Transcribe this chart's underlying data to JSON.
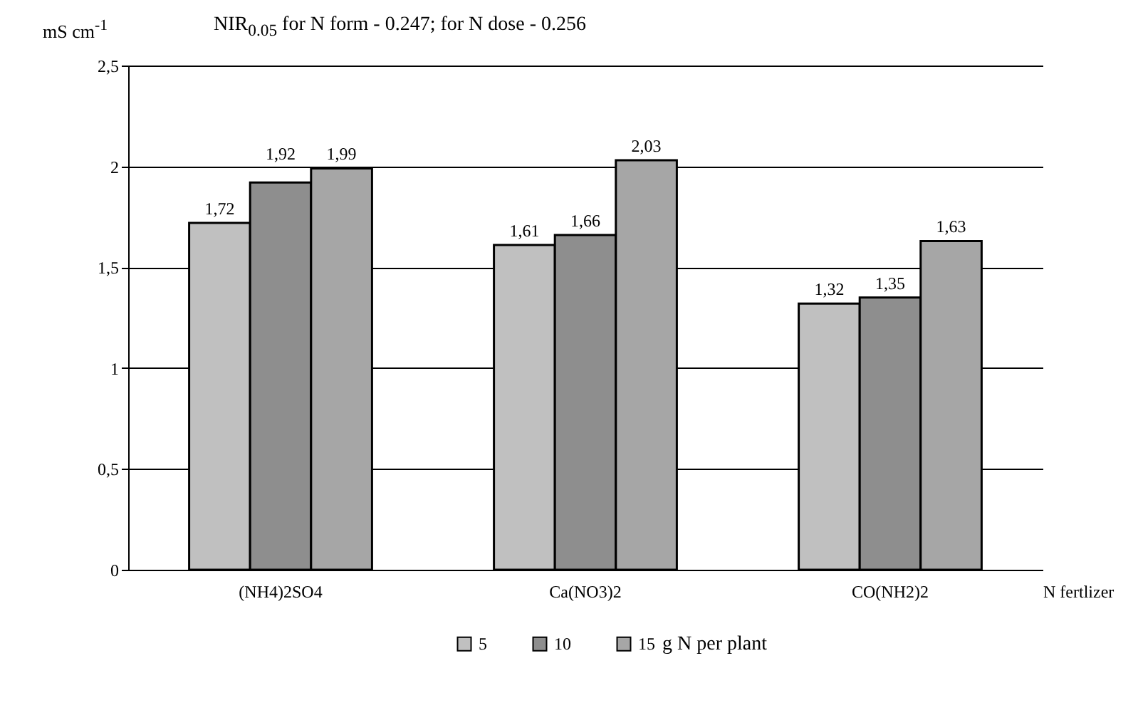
{
  "chart_data": {
    "type": "bar",
    "title": "NIR$_{0.05}$ for N form - 0.247; for N dose - 0.256",
    "ylabel": "mS cm$^{-1}$",
    "xlabel": "N fertlizer",
    "legend_title": "g N per plant",
    "categories": [
      "(NH4)2SO4",
      "Ca(NO3)2",
      "CO(NH2)2"
    ],
    "series": [
      {
        "name": "5",
        "color": "#c0c0c0",
        "values": [
          1.72,
          1.61,
          1.32
        ],
        "value_labels": [
          "1,72",
          "1,61",
          "1,32"
        ]
      },
      {
        "name": "10",
        "color": "#8e8e8e",
        "values": [
          1.92,
          1.66,
          1.35
        ],
        "value_labels": [
          "1,92",
          "1,66",
          "1,35"
        ]
      },
      {
        "name": "15",
        "color": "#a6a6a6",
        "values": [
          1.99,
          2.03,
          1.63
        ],
        "value_labels": [
          "1,99",
          "2,03",
          "1,63"
        ]
      }
    ],
    "ylim": [
      0,
      2.5
    ],
    "yticks": [
      0,
      {
        "value": 0.5,
        "label": "0,5"
      },
      1,
      {
        "value": 1.5,
        "label": "1,5"
      },
      2,
      {
        "value": 2.5,
        "label": "2,5"
      }
    ],
    "grid": "y",
    "legend": "bottom"
  }
}
